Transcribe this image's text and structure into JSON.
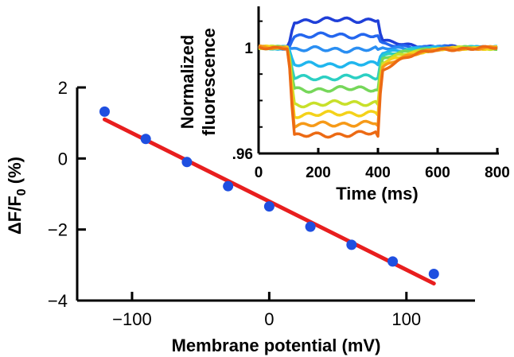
{
  "chart_data": [
    {
      "type": "scatter",
      "title": "",
      "xlabel": "Membrane potential (mV)",
      "ylabel": "ΔF/F0 (%)",
      "ylabel_main": "ΔF/F",
      "ylabel_sub": "0",
      "ylabel_unit": " (%)",
      "xlim": [
        -140,
        150
      ],
      "ylim": [
        -4,
        2
      ],
      "x_ticks": [
        -100,
        0,
        100
      ],
      "x_tick_labels": [
        "−100",
        "0",
        "100"
      ],
      "y_ticks": [
        -4,
        -2,
        0,
        2
      ],
      "y_tick_labels": [
        "−4",
        "−2",
        "0",
        "2"
      ],
      "grid": false,
      "legend": "none",
      "series": [
        {
          "x": [
            -120,
            -90,
            -60,
            -30,
            0,
            30,
            60,
            90,
            120
          ],
          "y": [
            1.32,
            0.55,
            -0.1,
            -0.78,
            -1.35,
            -1.92,
            -2.43,
            -2.9,
            -3.25
          ],
          "color": "#1f4fe0",
          "marker": "circle"
        }
      ],
      "fit_line": {
        "x": [
          -120,
          120
        ],
        "y": [
          1.1,
          -3.52
        ],
        "color": "#e81e1e"
      }
    },
    {
      "type": "line",
      "title": "",
      "xlabel": "Time (ms)",
      "ylabel": "Normalized fluorescence",
      "ylabel_lines": [
        "Normalized",
        "fluorescence"
      ],
      "xlim": [
        0,
        800
      ],
      "ylim": [
        0.96,
        1.015
      ],
      "x_ticks": [
        0,
        200,
        400,
        600,
        800
      ],
      "x_tick_labels": [
        "0",
        "200",
        "400",
        "600",
        "800"
      ],
      "y_ticks": [
        0.96,
        1.0
      ],
      "y_tick_labels": [
        ".96",
        "1"
      ],
      "grid": false,
      "legend": "none",
      "stimulus_window_ms": [
        100,
        400
      ],
      "series": [
        {
          "step_level": 1.0102,
          "color": "#1f3fd8"
        },
        {
          "step_level": 1.0045,
          "color": "#2466ee"
        },
        {
          "step_level": 0.9993,
          "color": "#2a8ef2"
        },
        {
          "step_level": 0.9935,
          "color": "#20b6ee"
        },
        {
          "step_level": 0.9885,
          "color": "#2ccfc3"
        },
        {
          "step_level": 0.984,
          "color": "#76d75a"
        },
        {
          "step_level": 0.9785,
          "color": "#c8e02a"
        },
        {
          "step_level": 0.9745,
          "color": "#f4d21a"
        },
        {
          "step_level": 0.9705,
          "color": "#f69a18"
        },
        {
          "step_level": 0.9665,
          "color": "#ec6a14"
        }
      ]
    }
  ]
}
